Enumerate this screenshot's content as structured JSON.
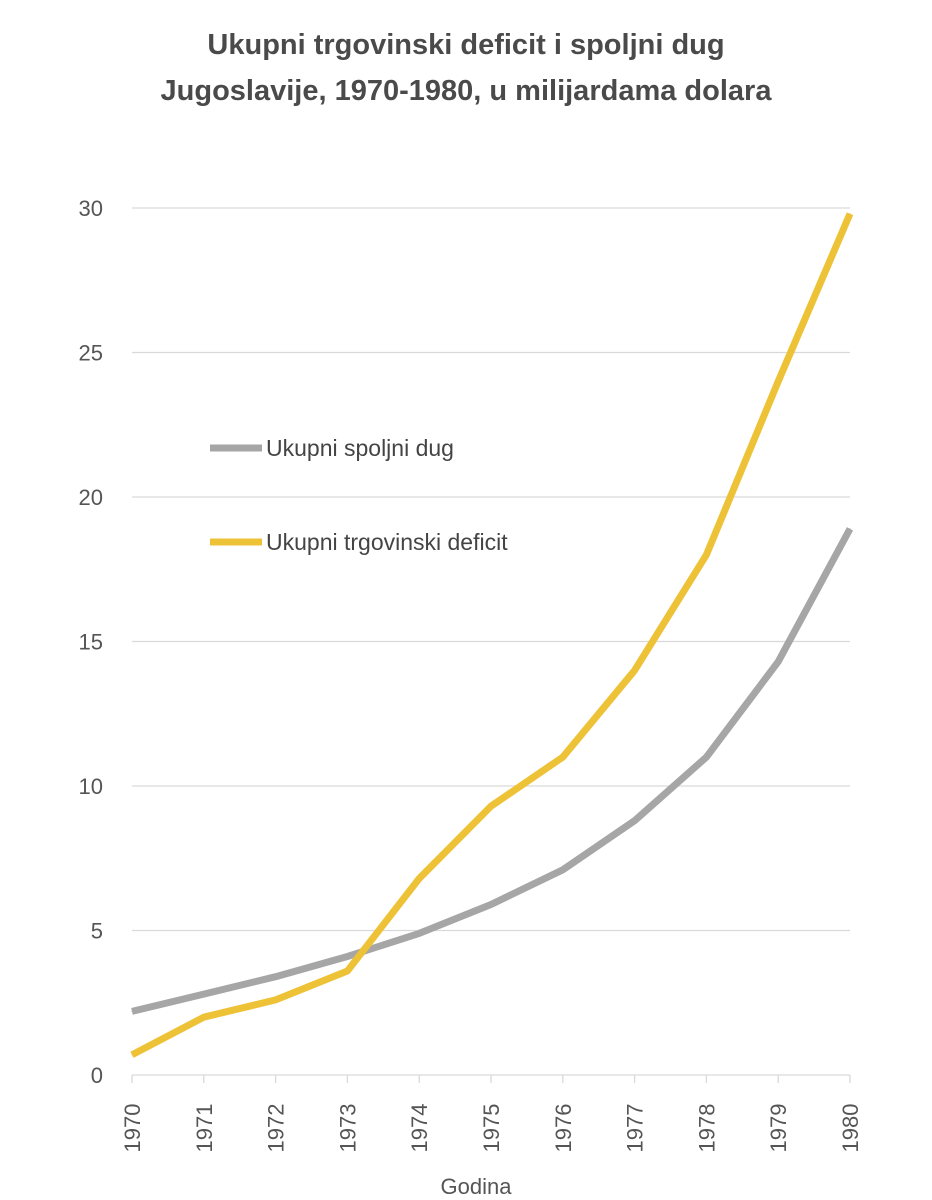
{
  "chart_data": {
    "type": "line",
    "title_lines": [
      "Ukupni trgovinski deficit i spoljni dug",
      "Jugoslavije, 1970-1980, u milijardama dolara"
    ],
    "xlabel": "Godina",
    "ylabel": "",
    "categories": [
      "1970",
      "1971",
      "1972",
      "1973",
      "1974",
      "1975",
      "1976",
      "1977",
      "1978",
      "1979",
      "1980"
    ],
    "ylim": [
      0,
      30
    ],
    "yticks": [
      0,
      5,
      10,
      15,
      20,
      25,
      30
    ],
    "grid": true,
    "legend_position": "upper-left inside plot",
    "series": [
      {
        "name": "Ukupni spoljni dug",
        "color": "#a6a6a6",
        "values": [
          2.2,
          2.8,
          3.4,
          4.1,
          4.9,
          5.9,
          7.1,
          8.8,
          11.0,
          14.3,
          18.9
        ]
      },
      {
        "name": "Ukupni trgovinski deficit",
        "color": "#eec237",
        "values": [
          0.7,
          2.0,
          2.6,
          3.6,
          6.8,
          9.3,
          11.0,
          14.0,
          18.0,
          24.0,
          29.8
        ]
      }
    ]
  }
}
